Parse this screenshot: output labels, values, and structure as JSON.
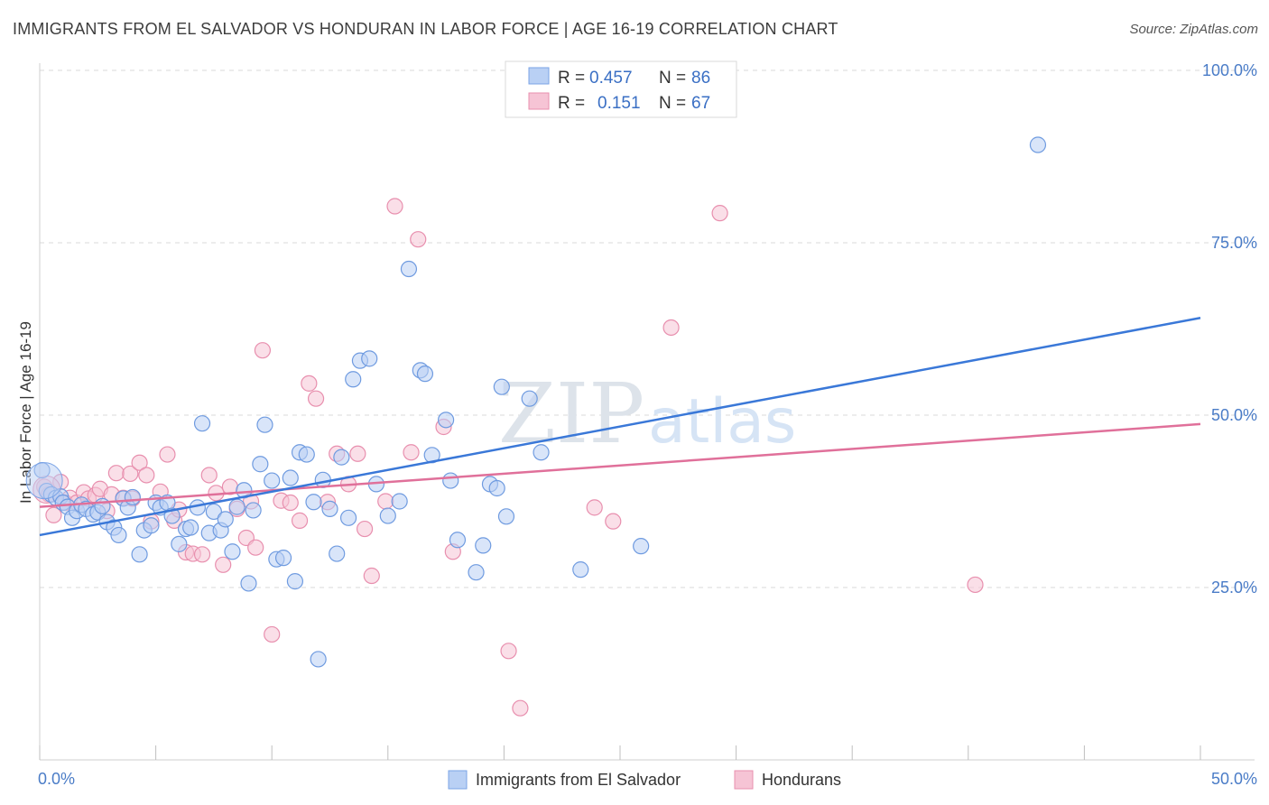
{
  "title": "IMMIGRANTS FROM EL SALVADOR VS HONDURAN IN LABOR FORCE | AGE 16-19 CORRELATION CHART",
  "source": "Source: ZipAtlas.com",
  "watermark": {
    "zip": "ZIP",
    "atlas": "atlas"
  },
  "colors": {
    "blue": "#3a78d8",
    "blue_fill": "#b9d0f4",
    "pink": "#e0709a",
    "pink_fill": "#f6c4d5",
    "grid": "#dadada",
    "tick_label": "#4a7cc7"
  },
  "legend": {
    "rows": [
      {
        "r_label": "R =",
        "r_value": "0.457",
        "n_label": "N =",
        "n_value": "86"
      },
      {
        "r_label": "R =",
        "r_value": "0.151",
        "n_label": "N =",
        "n_value": "67"
      }
    ]
  },
  "chart_data": {
    "type": "scatter",
    "title": "IMMIGRANTS FROM EL SALVADOR VS HONDURAN IN LABOR FORCE | AGE 16-19 CORRELATION CHART",
    "xlabel": "",
    "ylabel": "In Labor Force | Age 16-19",
    "xlim": [
      0,
      50
    ],
    "ylim": [
      0,
      100
    ],
    "x_tick_labels": [
      "0.0%",
      "50.0%"
    ],
    "y_tick_labels": [
      "100.0%",
      "75.0%",
      "50.0%",
      "25.0%"
    ],
    "y_ticks": [
      100,
      75,
      50,
      25
    ],
    "grid": true,
    "legend_position": "top-center",
    "series": [
      {
        "name": "Immigrants from El Salvador",
        "color": "#3a78d8",
        "R": 0.457,
        "N": 86,
        "trend": {
          "x": [
            0,
            50
          ],
          "y": [
            32.6,
            64.1
          ]
        },
        "points": [
          [
            0.1,
            42
          ],
          [
            0.3,
            39
          ],
          [
            0.5,
            38.5
          ],
          [
            0.7,
            38
          ],
          [
            0.9,
            38.2
          ],
          [
            1.0,
            37.3
          ],
          [
            1.2,
            36.7
          ],
          [
            1.4,
            35.1
          ],
          [
            1.6,
            36.1
          ],
          [
            1.8,
            37
          ],
          [
            2.0,
            36.4
          ],
          [
            2.3,
            35.6
          ],
          [
            2.5,
            35.9
          ],
          [
            2.7,
            36.8
          ],
          [
            2.9,
            34.5
          ],
          [
            3.2,
            33.7
          ],
          [
            3.4,
            32.6
          ],
          [
            3.6,
            37.9
          ],
          [
            3.8,
            36.6
          ],
          [
            4.0,
            38.1
          ],
          [
            4.3,
            29.8
          ],
          [
            4.5,
            33.3
          ],
          [
            4.8,
            34
          ],
          [
            5.0,
            37.3
          ],
          [
            5.2,
            36.6
          ],
          [
            5.5,
            37.3
          ],
          [
            5.7,
            35.4
          ],
          [
            6.0,
            31.3
          ],
          [
            6.3,
            33.5
          ],
          [
            6.5,
            33.7
          ],
          [
            6.8,
            36.6
          ],
          [
            7.0,
            48.8
          ],
          [
            7.3,
            32.9
          ],
          [
            7.5,
            36
          ],
          [
            7.8,
            33.3
          ],
          [
            8.0,
            34.9
          ],
          [
            8.3,
            30.2
          ],
          [
            8.5,
            36.7
          ],
          [
            8.8,
            39.1
          ],
          [
            9.0,
            25.6
          ],
          [
            9.2,
            36.2
          ],
          [
            9.5,
            42.9
          ],
          [
            9.7,
            48.6
          ],
          [
            10.0,
            40.5
          ],
          [
            10.2,
            29.1
          ],
          [
            10.5,
            29.3
          ],
          [
            10.8,
            40.9
          ],
          [
            11.0,
            25.9
          ],
          [
            11.2,
            44.6
          ],
          [
            11.5,
            44.3
          ],
          [
            11.8,
            37.4
          ],
          [
            12.0,
            14.6
          ],
          [
            12.2,
            40.6
          ],
          [
            12.5,
            36.4
          ],
          [
            12.8,
            29.9
          ],
          [
            13.0,
            43.9
          ],
          [
            13.3,
            35.1
          ],
          [
            13.5,
            55.2
          ],
          [
            13.8,
            57.9
          ],
          [
            14.2,
            58.2
          ],
          [
            14.5,
            40
          ],
          [
            15.0,
            35.4
          ],
          [
            15.5,
            37.5
          ],
          [
            15.9,
            71.2
          ],
          [
            16.4,
            56.5
          ],
          [
            16.6,
            56
          ],
          [
            16.9,
            44.2
          ],
          [
            17.5,
            49.3
          ],
          [
            17.7,
            40.5
          ],
          [
            18.0,
            31.9
          ],
          [
            18.8,
            27.2
          ],
          [
            19.1,
            31.1
          ],
          [
            19.4,
            40
          ],
          [
            19.7,
            39.4
          ],
          [
            19.9,
            54.1
          ],
          [
            20.1,
            35.3
          ],
          [
            21.1,
            52.4
          ],
          [
            21.6,
            44.6
          ],
          [
            23.3,
            27.6
          ],
          [
            25.9,
            31
          ],
          [
            43.0,
            89.2
          ]
        ]
      },
      {
        "name": "Hondurans",
        "color": "#e0709a",
        "R": 0.151,
        "N": 67,
        "trend": {
          "x": [
            0,
            50
          ],
          "y": [
            36.7,
            48.7
          ]
        },
        "points": [
          [
            0.2,
            39.6
          ],
          [
            0.4,
            38.5
          ],
          [
            0.6,
            35.5
          ],
          [
            0.9,
            40.3
          ],
          [
            1.1,
            37.3
          ],
          [
            1.3,
            38
          ],
          [
            1.6,
            37.3
          ],
          [
            1.9,
            38.8
          ],
          [
            2.1,
            37.9
          ],
          [
            2.4,
            38.4
          ],
          [
            2.6,
            39.3
          ],
          [
            2.9,
            36.1
          ],
          [
            3.1,
            38.5
          ],
          [
            3.3,
            41.6
          ],
          [
            3.6,
            38
          ],
          [
            3.9,
            41.5
          ],
          [
            4.0,
            37.9
          ],
          [
            4.3,
            43.1
          ],
          [
            4.6,
            41.3
          ],
          [
            4.8,
            34.6
          ],
          [
            5.2,
            38.9
          ],
          [
            5.5,
            44.3
          ],
          [
            5.8,
            34.7
          ],
          [
            6.0,
            36.3
          ],
          [
            6.3,
            30.1
          ],
          [
            6.6,
            29.9
          ],
          [
            7.0,
            29.8
          ],
          [
            7.3,
            41.3
          ],
          [
            7.6,
            38.7
          ],
          [
            7.9,
            28.3
          ],
          [
            8.2,
            39.6
          ],
          [
            8.5,
            36.4
          ],
          [
            8.9,
            32.2
          ],
          [
            9.1,
            37.5
          ],
          [
            9.3,
            30.8
          ],
          [
            9.6,
            59.4
          ],
          [
            10.0,
            18.2
          ],
          [
            10.4,
            37.6
          ],
          [
            10.8,
            37.3
          ],
          [
            11.2,
            34.7
          ],
          [
            11.6,
            54.6
          ],
          [
            11.9,
            52.4
          ],
          [
            12.4,
            37.4
          ],
          [
            12.8,
            44.4
          ],
          [
            13.3,
            40
          ],
          [
            13.7,
            44.4
          ],
          [
            14.0,
            33.5
          ],
          [
            14.3,
            26.7
          ],
          [
            14.9,
            37.5
          ],
          [
            15.3,
            80.3
          ],
          [
            16.0,
            44.6
          ],
          [
            16.3,
            75.5
          ],
          [
            17.4,
            48.3
          ],
          [
            17.8,
            30.2
          ],
          [
            20.2,
            15.8
          ],
          [
            20.7,
            7.5
          ],
          [
            23.9,
            36.6
          ],
          [
            24.7,
            34.6
          ],
          [
            27.2,
            62.7
          ],
          [
            29.3,
            79.3
          ],
          [
            40.3,
            25.4
          ]
        ]
      }
    ]
  },
  "bottom_legend": [
    {
      "label": "Immigrants from El Salvador"
    },
    {
      "label": "Hondurans"
    }
  ]
}
